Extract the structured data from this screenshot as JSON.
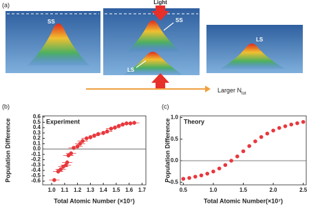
{
  "panel_a": {
    "label": "(a)",
    "light": "Light",
    "ss_left": "SS",
    "ss_middle": "SS",
    "ls_middle": "LS",
    "ls_right": "LS",
    "arrow_label": "Larger N",
    "arrow_label_sub": "tot"
  },
  "chart_data": [
    {
      "type": "scatter",
      "panel_label": "(b)",
      "annotation": "Experiment",
      "x_label": "Total Atomic Number (×10⁷)",
      "y_label": "Population Difference",
      "x": [
        1.02,
        1.05,
        1.07,
        1.09,
        1.11,
        1.12,
        1.13,
        1.15,
        1.17,
        1.2,
        1.22,
        1.24,
        1.27,
        1.3,
        1.33,
        1.36,
        1.4,
        1.43,
        1.46,
        1.49,
        1.52,
        1.55,
        1.58,
        1.61,
        1.64
      ],
      "series": [
        {
          "color": "#e8383d",
          "values": [
            -0.58,
            -0.42,
            -0.38,
            -0.33,
            -0.3,
            -0.25,
            -0.12,
            -0.08,
            0.02,
            0.05,
            0.1,
            0.15,
            0.2,
            0.22,
            0.25,
            0.28,
            0.3,
            0.33,
            0.38,
            0.4,
            0.43,
            0.46,
            0.48,
            0.48,
            0.49
          ]
        }
      ],
      "xerr": 0.04,
      "yerr": 0.04,
      "xlim": [
        0.93,
        1.73
      ],
      "ylim": [
        -0.67,
        0.62
      ],
      "xticks": [
        {
          "value": 1,
          "label": "1.0"
        },
        1.1,
        1.2,
        1.3,
        1.4,
        1.5,
        1.6,
        1.7
      ],
      "yticks": [
        -0.6,
        -0.5,
        -0.4,
        -0.3,
        -0.2,
        -0.1,
        {
          "value": 0,
          "label": "0.0"
        },
        0.1,
        0.2,
        0.3,
        0.4,
        0.5,
        0.6
      ],
      "hline": 0
    },
    {
      "type": "scatter",
      "panel_label": "(c)",
      "annotation": "Theory",
      "x_label": "Total Atomic Number(×10⁷)",
      "y_label": "Population Difference",
      "x": [
        0.5,
        0.6,
        0.7,
        0.8,
        0.9,
        1,
        1.1,
        1.2,
        1.3,
        1.4,
        1.5,
        1.6,
        1.7,
        1.8,
        1.9,
        2,
        2.1,
        2.2,
        2.3,
        2.4,
        2.5
      ],
      "series": [
        {
          "color": "#e8383d",
          "values": [
            -0.42,
            -0.4,
            -0.37,
            -0.34,
            -0.3,
            -0.25,
            -0.18,
            -0.1,
            0,
            0.1,
            0.22,
            0.34,
            0.45,
            0.55,
            0.63,
            0.7,
            0.76,
            0.8,
            0.84,
            0.87,
            0.9
          ]
        }
      ],
      "xlim": [
        0.45,
        2.55
      ],
      "ylim": [
        -0.56,
        1.04
      ],
      "xticks": [
        0.5,
        {
          "value": 1,
          "label": "1.0"
        },
        1.5,
        {
          "value": 2,
          "label": "2.0"
        },
        2.5
      ],
      "yticks": [
        -0.5,
        {
          "value": 0,
          "label": "0.0"
        },
        0.5,
        {
          "value": 1,
          "label": "1.0"
        }
      ],
      "hline": 0
    }
  ]
}
